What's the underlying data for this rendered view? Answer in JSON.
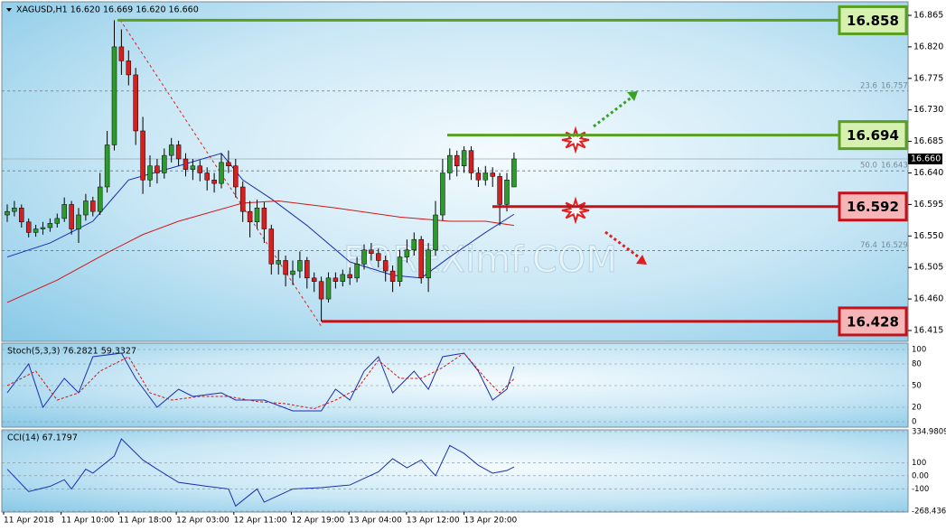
{
  "chart_data": {
    "type": "candlestick",
    "title": "XAGUSD,H1  16.620 16.669 16.620 16.660",
    "watermark": "FOREXimf.COM",
    "up_color": "#2e9a2e",
    "down_color": "#d42020",
    "open": [
      16.58,
      16.585,
      16.59,
      16.57,
      16.555,
      16.56,
      16.562,
      16.568,
      16.575,
      16.595,
      16.56,
      16.58,
      16.6,
      16.585,
      16.62,
      16.68,
      16.82,
      16.8,
      16.78,
      16.7,
      16.63,
      16.65,
      16.64,
      16.665,
      16.68,
      16.66,
      16.645,
      16.65,
      16.64,
      16.63,
      16.625,
      16.655,
      16.65,
      16.62,
      16.585,
      16.57,
      16.59,
      16.56,
      16.51,
      16.515,
      16.495,
      16.5,
      16.515,
      16.49,
      16.485,
      16.46,
      16.49,
      16.485,
      16.495,
      16.49,
      16.51,
      16.53,
      16.525,
      16.515,
      16.5,
      16.485,
      16.52,
      16.53,
      16.545,
      16.49,
      16.53,
      16.58,
      16.64,
      16.665,
      16.65,
      16.672,
      16.64,
      16.63,
      16.64,
      16.635,
      16.595,
      16.62
    ],
    "high": [
      16.595,
      16.6,
      16.595,
      16.575,
      16.566,
      16.57,
      16.575,
      16.582,
      16.605,
      16.6,
      16.59,
      16.61,
      16.606,
      16.64,
      16.7,
      16.858,
      16.845,
      16.815,
      16.79,
      16.72,
      16.665,
      16.66,
      16.675,
      16.69,
      16.686,
      16.668,
      16.66,
      16.658,
      16.648,
      16.64,
      16.668,
      16.672,
      16.66,
      16.628,
      16.6,
      16.602,
      16.598,
      16.566,
      16.53,
      16.522,
      16.515,
      16.528,
      16.52,
      16.498,
      16.492,
      16.498,
      16.498,
      16.502,
      16.505,
      16.52,
      16.538,
      16.54,
      16.532,
      16.522,
      16.508,
      16.53,
      16.545,
      16.555,
      16.55,
      16.54,
      16.6,
      16.66,
      16.675,
      16.672,
      16.678,
      16.678,
      16.648,
      16.65,
      16.648,
      16.64,
      16.64,
      16.669
    ],
    "low": [
      16.57,
      16.578,
      16.562,
      16.548,
      16.549,
      16.552,
      16.556,
      16.562,
      16.57,
      16.552,
      16.54,
      16.572,
      16.578,
      16.58,
      16.612,
      16.672,
      16.78,
      16.765,
      16.68,
      16.61,
      16.62,
      16.625,
      16.632,
      16.655,
      16.65,
      16.635,
      16.63,
      16.628,
      16.615,
      16.612,
      16.618,
      16.64,
      16.605,
      16.57,
      16.548,
      16.56,
      16.54,
      16.495,
      16.495,
      16.478,
      16.48,
      16.49,
      16.475,
      16.47,
      16.428,
      16.455,
      16.475,
      16.478,
      16.48,
      16.484,
      16.502,
      16.515,
      16.505,
      16.485,
      16.47,
      16.478,
      16.512,
      16.522,
      16.482,
      16.47,
      16.522,
      16.572,
      16.63,
      16.635,
      16.64,
      16.63,
      16.62,
      16.622,
      16.62,
      16.565,
      16.585,
      16.62
    ],
    "close": [
      16.585,
      16.59,
      16.57,
      16.555,
      16.56,
      16.562,
      16.568,
      16.575,
      16.595,
      16.56,
      16.58,
      16.6,
      16.585,
      16.62,
      16.68,
      16.82,
      16.8,
      16.78,
      16.7,
      16.63,
      16.65,
      16.64,
      16.665,
      16.68,
      16.66,
      16.645,
      16.65,
      16.64,
      16.63,
      16.625,
      16.655,
      16.65,
      16.62,
      16.585,
      16.57,
      16.59,
      16.56,
      16.51,
      16.515,
      16.495,
      16.5,
      16.515,
      16.49,
      16.485,
      16.46,
      16.49,
      16.485,
      16.495,
      16.49,
      16.51,
      16.53,
      16.525,
      16.515,
      16.5,
      16.485,
      16.52,
      16.53,
      16.545,
      16.49,
      16.53,
      16.58,
      16.64,
      16.665,
      16.65,
      16.672,
      16.64,
      16.63,
      16.64,
      16.635,
      16.595,
      16.63,
      16.66
    ],
    "ylim": [
      16.415,
      16.865
    ],
    "yticks": [
      {
        "value": 16.865,
        "label": "16.865"
      },
      {
        "value": 16.82,
        "label": "16.820"
      },
      {
        "value": 16.775,
        "label": "16.775"
      },
      {
        "value": 16.73,
        "label": "16.730"
      },
      {
        "value": 16.685,
        "label": "16.685"
      },
      {
        "value": 16.64,
        "label": "16.640"
      },
      {
        "value": 16.595,
        "label": "16.595"
      },
      {
        "value": 16.55,
        "label": "16.550"
      },
      {
        "value": 16.505,
        "label": "16.505"
      },
      {
        "value": 16.46,
        "label": "16.460"
      },
      {
        "value": 16.415,
        "label": "16.415"
      }
    ],
    "moving_averages": [
      {
        "color": "#1a2fb0",
        "x": [
          0,
          6,
          12,
          17,
          24,
          30,
          33,
          37,
          42,
          48,
          54,
          58,
          62,
          67,
          71
        ],
        "values": [
          16.52,
          16.54,
          16.571,
          16.63,
          16.65,
          16.668,
          16.63,
          16.603,
          16.565,
          16.513,
          16.494,
          16.49,
          16.52,
          16.555,
          16.581
        ]
      },
      {
        "color": "#d01818",
        "x": [
          0,
          7,
          14,
          19,
          24,
          33,
          38,
          46,
          55,
          62,
          67,
          71
        ],
        "values": [
          16.455,
          16.487,
          16.526,
          16.552,
          16.571,
          16.597,
          16.6,
          16.59,
          16.577,
          16.571,
          16.571,
          16.565
        ]
      }
    ],
    "current_price": {
      "value": 16.66,
      "label": "16.660"
    },
    "levels": {
      "values": [
        16.858,
        16.694,
        16.592,
        16.428
      ],
      "value_labels": [
        "16.858",
        "16.694",
        "16.592",
        "16.428"
      ],
      "colors": [
        "#5a9e22",
        "#5a9e22",
        "#c4121a",
        "#c4121a"
      ],
      "fills": [
        "#d6f0b0",
        "#d6f0b0",
        "#f6b6b8",
        "#f6b6b8"
      ]
    },
    "fib": {
      "ratios": [
        "23.6",
        "50.0",
        "76.4"
      ],
      "values": [
        16.757,
        16.643,
        16.529
      ],
      "value_labels": [
        "16.757",
        "16.643",
        "16.529"
      ]
    },
    "x_labels": [
      "11 Apr 2018",
      "11 Apr 10:00",
      "11 Apr 18:00",
      "12 Apr 03:00",
      "12 Apr 11:00",
      "12 Apr 19:00",
      "13 Apr 04:00",
      "13 Apr 12:00",
      "13 Apr 20:00"
    ],
    "indicators": [
      {
        "title": "Stoch(5,3,3) 76.2821 59.3327",
        "ylim": [
          0,
          100
        ],
        "yticks": [
          100,
          80,
          50,
          20,
          0
        ],
        "series": [
          {
            "color": "#1a2fb0",
            "dashed": false,
            "x": [
              0,
              3,
              5,
              8,
              10,
              12,
              16,
              18,
              21,
              24,
              26,
              30,
              32,
              36,
              40,
              44,
              46,
              48,
              50,
              52,
              54,
              57,
              59,
              61,
              64,
              66,
              68,
              70,
              71
            ],
            "values": [
              40,
              80,
              20,
              60,
              40,
              90,
              95,
              60,
              20,
              45,
              35,
              40,
              30,
              30,
              15,
              15,
              45,
              30,
              70,
              90,
              40,
              70,
              45,
              90,
              95,
              70,
              30,
              45,
              76.2821
            ]
          },
          {
            "color": "#d01818",
            "dashed": true,
            "x": [
              0,
              4,
              7,
              10,
              13,
              17,
              20,
              23,
              27,
              31,
              35,
              39,
              43,
              46,
              49,
              52,
              55,
              58,
              61,
              64,
              67,
              69,
              71
            ],
            "values": [
              50,
              70,
              30,
              40,
              70,
              90,
              40,
              30,
              35,
              35,
              28,
              25,
              18,
              30,
              45,
              85,
              60,
              60,
              75,
              95,
              60,
              40,
              59.3327
            ]
          }
        ]
      },
      {
        "title": "CCI(14) 67.1797",
        "ylim": [
          -268.436,
          334.9809
        ],
        "yticks": [
          334.9809,
          100,
          {
            "value": 0,
            "label": "0.00"
          },
          -100,
          -268.436
        ],
        "series": [
          {
            "color": "#1a2fb0",
            "dashed": false,
            "x": [
              0,
              3,
              6,
              8,
              9,
              11,
              12,
              15,
              16,
              19,
              21,
              24,
              28,
              31,
              32,
              35,
              36,
              38,
              40,
              44,
              48,
              52,
              54,
              56,
              58,
              60,
              62,
              64,
              66,
              68,
              70,
              71
            ],
            "values": [
              50,
              -120,
              -80,
              -30,
              -100,
              50,
              20,
              150,
              280,
              120,
              50,
              -50,
              -80,
              -100,
              -230,
              -100,
              -200,
              -150,
              -100,
              -90,
              -70,
              30,
              130,
              60,
              120,
              0,
              230,
              170,
              80,
              20,
              40,
              67.1797
            ]
          }
        ]
      }
    ]
  }
}
